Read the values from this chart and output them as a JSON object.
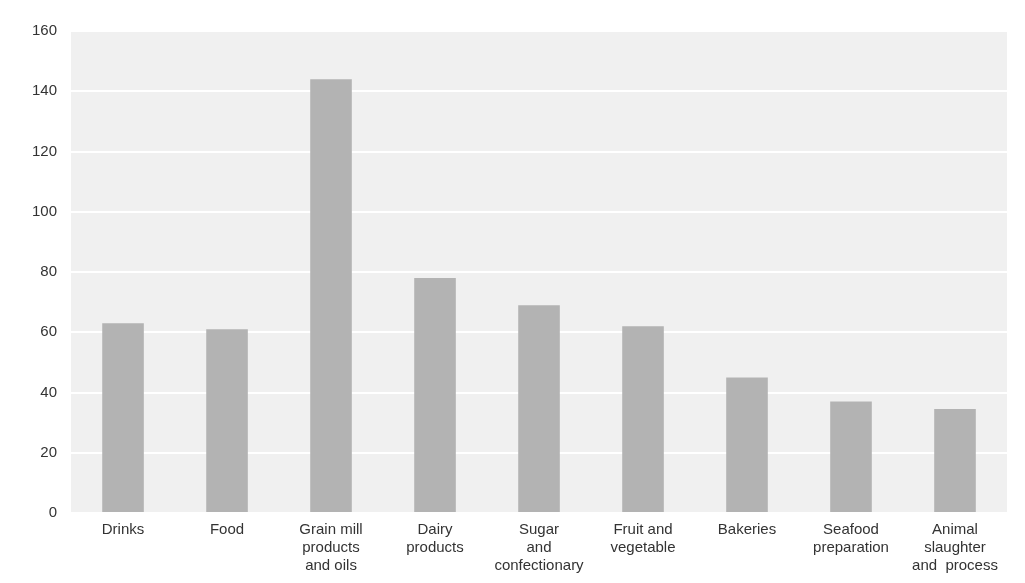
{
  "chart_data": {
    "type": "bar",
    "categories": [
      "Drinks",
      "Food",
      "Grain mill\nproducts\nand oils",
      "Dairy\nproducts",
      "Sugar\nand\nconfectionary",
      "Fruit and\nvegetable",
      "Bakeries",
      "Seafood\npreparation",
      "Animal\nslaughter\nand  process"
    ],
    "values": [
      63,
      61,
      144,
      78,
      69,
      62,
      45,
      37,
      34.5
    ],
    "color": "#b3b3b3",
    "ylim": [
      0,
      160
    ],
    "yticks": [
      0,
      20,
      40,
      60,
      80,
      100,
      120,
      140,
      160
    ],
    "grid": "y"
  }
}
